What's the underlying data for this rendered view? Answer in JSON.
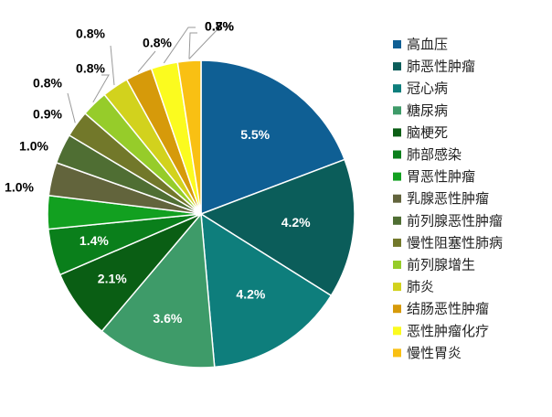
{
  "chart_data": {
    "type": "pie",
    "categories": [
      "高血压",
      "肺恶性肿瘤",
      "冠心病",
      "糖尿病",
      "脑梗死",
      "肺部感染",
      "胃恶性肿瘤",
      "乳腺恶性肿瘤",
      "前列腺恶性肿瘤",
      "慢性阻塞性肺病",
      "前列腺增生",
      "肺炎",
      "结肠恶性肿瘤",
      "恶性肿瘤化疗",
      "慢性胃炎"
    ],
    "values": [
      5.5,
      4.2,
      4.2,
      3.6,
      2.1,
      1.4,
      1.0,
      1.0,
      0.9,
      0.8,
      0.8,
      0.8,
      0.8,
      0.8,
      0.7
    ],
    "labels": [
      "5.5%",
      "4.2%",
      "4.2%",
      "3.6%",
      "2.1%",
      "1.4%",
      "1.0%",
      "1.0%",
      "0.9%",
      "0.8%",
      "0.8%",
      "0.8%",
      "0.8%",
      "0.8%",
      "0.7%"
    ],
    "label_colors": [
      "#ffffff",
      "#ffffff",
      "#ffffff",
      "#ffffff",
      "#ffffff",
      "#ffffff",
      "#000000",
      "#000000",
      "#000000",
      "#000000",
      "#000000",
      "#000000",
      "#000000",
      "#000000",
      "#000000"
    ],
    "colors": [
      "#0F5F94",
      "#0B5D5A",
      "#0E7E7C",
      "#3E9B69",
      "#0A5E14",
      "#0A7F1B",
      "#12A020",
      "#62643C",
      "#4F6E33",
      "#72782A",
      "#96CC2A",
      "#D2D21D",
      "#D69A0A",
      "#FBFB1F",
      "#F9C013"
    ],
    "legend": "right"
  }
}
